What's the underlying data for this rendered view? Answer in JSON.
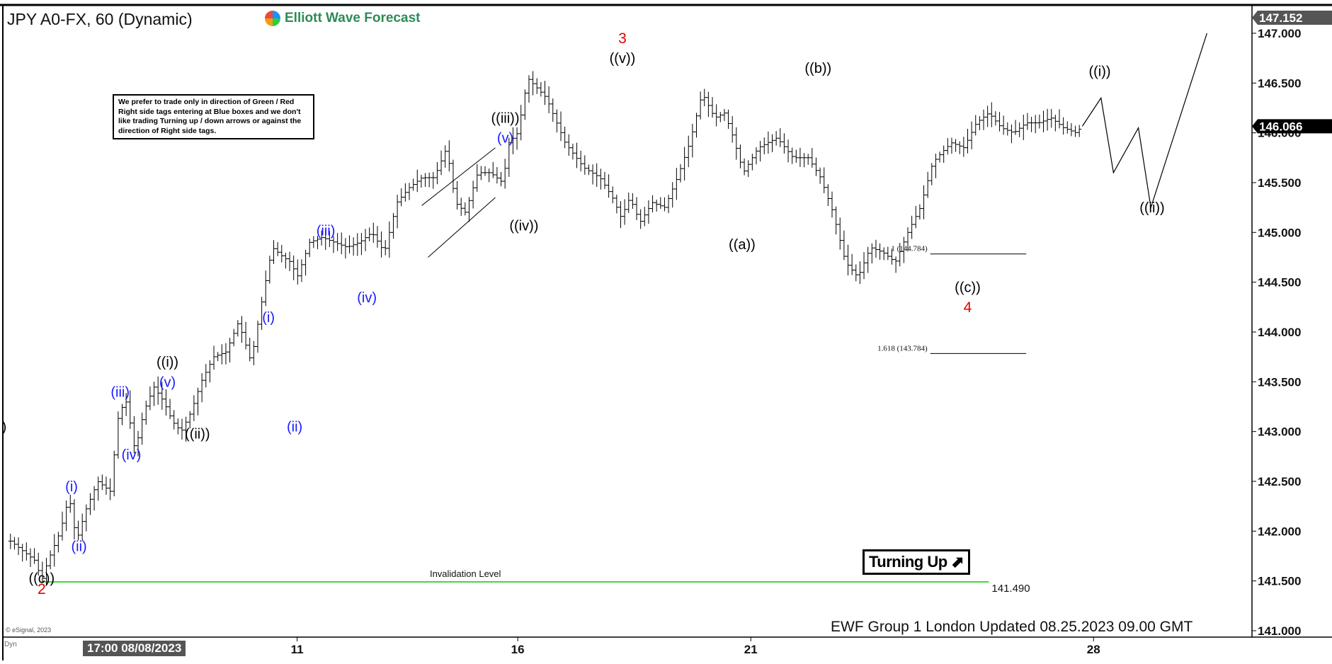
{
  "header": {
    "symbol_title": "JPY A0-FX, 60 (Dynamic)",
    "brand": "Elliott Wave Forecast"
  },
  "note_text": "We prefer to trade only in direction of Green / Red Right side tags entering at Blue boxes and we don't like trading Turning up / down arrows or against the direction of Right side tags.",
  "footer_text": "EWF Group 1 London Updated 08.25.2023 09.00 GMT",
  "copyright": "© eSignal, 2023",
  "dyn_label": "Dyn",
  "turning_label": "Turning Up ⬈",
  "date_flag": "17:00 08/08/2023",
  "colors": {
    "blue_labels": "#1a1aff",
    "red_labels": "#e00000",
    "black_labels": "#000000",
    "invalidation": "#00cc00",
    "price_axis_bg": "#ffffff"
  },
  "chart_data": {
    "type": "line",
    "subtype": "ohlc-bars with elliott wave annotations",
    "title": "JPY A0-FX, 60 (Dynamic)",
    "y_axis": {
      "range": [
        141.0,
        147.2
      ],
      "ticks": [
        "141.000",
        "141.500",
        "142.000",
        "142.500",
        "143.000",
        "143.500",
        "144.000",
        "144.500",
        "145.000",
        "145.500",
        "146.000",
        "146.500",
        "147.000"
      ],
      "tick_values": [
        141.0,
        141.5,
        142.0,
        142.5,
        143.0,
        143.5,
        144.0,
        144.5,
        145.0,
        145.5,
        146.0,
        146.5,
        147.0
      ],
      "top_tag": "147.152",
      "current_price_tag": "146.066",
      "current_price": 146.066
    },
    "x_axis": {
      "range": [
        0,
        100
      ],
      "tick_labels": [
        "11",
        "16",
        "21",
        "28"
      ],
      "tick_positions": [
        23.5,
        41.2,
        59.9,
        87.4
      ]
    },
    "price_path": {
      "x": [
        0.5,
        1.5,
        2.5,
        3.0,
        3.5,
        4.5,
        5.2,
        5.8,
        6.5,
        7.5,
        8.5,
        9.2,
        9.8,
        10.5,
        11.2,
        12.0,
        12.8,
        13.5,
        14.2,
        15.0,
        15.8,
        16.8,
        17.8,
        18.8,
        19.8,
        20.8,
        21.5,
        22.4,
        23.0,
        23.5,
        24.5,
        25.5,
        26.5,
        27.5,
        28.5,
        29.5,
        30.5,
        31.5,
        32.5,
        33.5,
        34.5,
        35.5,
        36.2,
        37.0,
        38.0,
        39.0,
        40.0,
        40.5,
        41.2,
        42.0,
        43.5,
        45.0,
        46.5,
        47.8,
        48.8,
        49.5,
        50.2,
        51.0,
        52.0,
        53.0,
        54.0,
        55.0,
        56.0,
        57.0,
        57.8,
        58.5,
        59.3,
        60.5,
        62.0,
        63.3,
        64.5,
        65.5,
        66.5,
        67.5,
        68.5,
        69.5,
        70.5,
        71.5,
        72.5,
        73.5,
        74.5,
        75.2,
        76.0,
        77.0,
        78.0,
        79.0,
        80.0,
        81.0,
        82.0,
        83.0,
        84.0,
        85.0,
        86.0,
        86.5
      ],
      "y": [
        141.9,
        141.8,
        141.7,
        141.5,
        141.7,
        142.0,
        142.35,
        141.9,
        142.2,
        142.5,
        142.4,
        143.2,
        143.3,
        142.8,
        143.2,
        143.45,
        143.3,
        143.1,
        143.0,
        143.2,
        143.5,
        143.75,
        143.8,
        144.1,
        143.7,
        144.4,
        144.85,
        144.75,
        144.7,
        144.55,
        144.9,
        144.95,
        144.9,
        144.85,
        144.9,
        145.0,
        144.8,
        145.3,
        145.45,
        145.55,
        145.55,
        145.85,
        145.3,
        145.2,
        145.6,
        145.6,
        145.5,
        145.9,
        146.0,
        146.55,
        146.35,
        145.9,
        145.65,
        145.55,
        145.35,
        145.15,
        145.35,
        145.1,
        145.3,
        145.25,
        145.55,
        145.9,
        146.4,
        146.15,
        146.2,
        145.95,
        145.6,
        145.85,
        145.95,
        145.75,
        145.75,
        145.55,
        145.2,
        144.7,
        144.55,
        144.85,
        144.8,
        144.7,
        145.0,
        145.25,
        145.7,
        145.8,
        145.9,
        145.85,
        146.1,
        146.2,
        146.05,
        146.0,
        146.1,
        146.1,
        146.15,
        146.05,
        146.0,
        146.07
      ]
    },
    "projection_path": {
      "x": [
        86.5,
        88.0,
        89.0,
        91.0,
        92.0,
        96.5
      ],
      "y": [
        146.066,
        146.35,
        145.6,
        146.05,
        145.25,
        147.0
      ]
    },
    "channel_lines": [
      {
        "x": [
          33.5,
          39.4
        ],
        "y": [
          145.27,
          145.85
        ]
      },
      {
        "x": [
          34.0,
          39.4
        ],
        "y": [
          144.75,
          145.35
        ]
      }
    ],
    "fib_lines": [
      {
        "label": "1 (144.784)",
        "value": 144.784,
        "x_start": 74.3,
        "x_end": 82.0
      },
      {
        "label": "1.618 (143.784)",
        "value": 143.784,
        "x_start": 74.3,
        "x_end": 82.0
      }
    ],
    "invalidation": {
      "label": "Invalidation Level",
      "value": 141.49,
      "value_label": "141.490",
      "x_start": 3.0,
      "x_end": 79.0
    },
    "wave_labels": [
      {
        "text": ")",
        "x": 0.0,
        "y": 143.0,
        "color": "black"
      },
      {
        "text": "((c))",
        "x": 3.0,
        "y": 141.48,
        "color": "black"
      },
      {
        "text": "2",
        "x": 3.0,
        "y": 141.37,
        "color": "red"
      },
      {
        "text": "(i)",
        "x": 5.4,
        "y": 142.4,
        "color": "blue"
      },
      {
        "text": "(ii)",
        "x": 6.0,
        "y": 141.8,
        "color": "blue"
      },
      {
        "text": "(iii)",
        "x": 9.3,
        "y": 143.35,
        "color": "blue"
      },
      {
        "text": "(iv)",
        "x": 10.2,
        "y": 142.72,
        "color": "blue"
      },
      {
        "text": "(v)",
        "x": 13.1,
        "y": 143.45,
        "color": "blue"
      },
      {
        "text": "((i))",
        "x": 13.1,
        "y": 143.65,
        "color": "black"
      },
      {
        "text": "((ii))",
        "x": 15.5,
        "y": 142.93,
        "color": "black"
      },
      {
        "text": "(i)",
        "x": 21.2,
        "y": 144.1,
        "color": "blue"
      },
      {
        "text": "(ii)",
        "x": 23.3,
        "y": 143.0,
        "color": "blue"
      },
      {
        "text": "(iii)",
        "x": 25.8,
        "y": 144.97,
        "color": "blue"
      },
      {
        "text": "(iv)",
        "x": 29.1,
        "y": 144.3,
        "color": "blue"
      },
      {
        "text": "((iii))",
        "x": 40.2,
        "y": 146.1,
        "color": "black"
      },
      {
        "text": "(v)",
        "x": 40.2,
        "y": 145.9,
        "color": "blue"
      },
      {
        "text": "((iv))",
        "x": 41.7,
        "y": 145.02,
        "color": "black"
      },
      {
        "text": "((v))",
        "x": 49.6,
        "y": 146.7,
        "color": "black"
      },
      {
        "text": "3",
        "x": 49.6,
        "y": 146.9,
        "color": "red"
      },
      {
        "text": "((a))",
        "x": 59.2,
        "y": 144.83,
        "color": "black"
      },
      {
        "text": "((b))",
        "x": 65.3,
        "y": 146.6,
        "color": "black"
      },
      {
        "text": "((c))",
        "x": 77.3,
        "y": 144.4,
        "color": "black"
      },
      {
        "text": "4",
        "x": 77.3,
        "y": 144.2,
        "color": "red"
      },
      {
        "text": "((i))",
        "x": 87.9,
        "y": 146.57,
        "color": "black"
      },
      {
        "text": "((ii))",
        "x": 92.1,
        "y": 145.2,
        "color": "black"
      }
    ]
  }
}
